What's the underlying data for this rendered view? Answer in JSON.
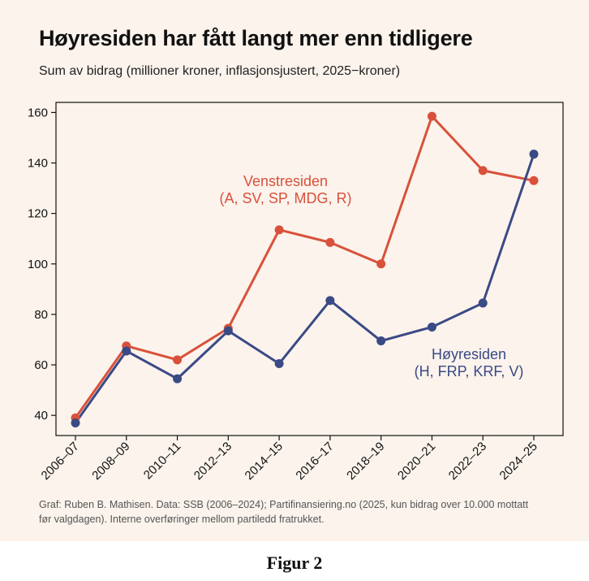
{
  "chart_data": {
    "type": "line",
    "title": "Høyresiden har fått langt mer enn tidligere",
    "subtitle": "Sum av bidrag (millioner kroner, inflasjonsjustert, 2025−kroner)",
    "categories": [
      "2006–07",
      "2008–09",
      "2010–11",
      "2012–13",
      "2014–15",
      "2016–17",
      "2018–19",
      "2020–21",
      "2022–23",
      "2024–25"
    ],
    "ylim": [
      32,
      164
    ],
    "yticks": [
      40,
      60,
      80,
      100,
      120,
      140,
      160
    ],
    "series": [
      {
        "name": "Venstresiden",
        "label_lines": [
          "Venstresiden",
          "(A, SV, SP, MDG, R)"
        ],
        "color": "#d9513b",
        "values": [
          39,
          67.5,
          62,
          74.5,
          113.5,
          108.5,
          100,
          158.5,
          137,
          133
        ]
      },
      {
        "name": "Høyresiden",
        "label_lines": [
          "Høyresiden",
          "(H, FRP, KRF, V)"
        ],
        "color": "#3a4a85",
        "values": [
          37,
          65.5,
          54.5,
          73.5,
          60.5,
          85.5,
          69.5,
          75,
          84.5,
          143.5
        ]
      }
    ],
    "grid": false,
    "xlabel": "",
    "ylabel": ""
  },
  "caption": "Graf: Ruben B. Mathisen. Data: SSB (2006–2024); Partifinansiering.no (2025, kun bidrag over 10.000 mottatt før valgdagen). Interne overføringer mellom partiledd fratrukket.",
  "figure_label": "Figur 2",
  "colors": {
    "background": "#fbf3ec",
    "axis": "#111111"
  }
}
